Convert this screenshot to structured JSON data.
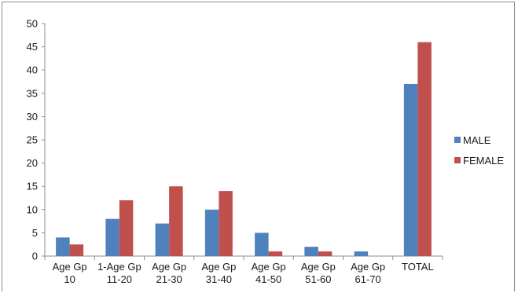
{
  "chart_data": {
    "type": "bar",
    "categories": [
      [
        "Age Gp",
        "10"
      ],
      [
        "1-Age Gp",
        "11-20"
      ],
      [
        "Age Gp",
        "21-30"
      ],
      [
        "Age Gp",
        "31-40"
      ],
      [
        "Age Gp",
        "41-50"
      ],
      [
        "Age Gp",
        "51-60"
      ],
      [
        "Age Gp",
        "61-70"
      ],
      [
        "TOTAL",
        ""
      ]
    ],
    "series": [
      {
        "name": "MALE",
        "color": "#4f81bd",
        "values": [
          4,
          8,
          7,
          10,
          5,
          2,
          1,
          37
        ]
      },
      {
        "name": "FEMALE",
        "color": "#c0504d",
        "values": [
          2.5,
          12,
          15,
          14,
          1,
          1,
          0,
          46
        ]
      }
    ],
    "ylim": [
      0,
      50
    ],
    "yticks": [
      0,
      5,
      10,
      15,
      20,
      25,
      30,
      35,
      40,
      45,
      50
    ],
    "grid": false,
    "legend": "right",
    "title": "",
    "xlabel": "",
    "ylabel": ""
  }
}
